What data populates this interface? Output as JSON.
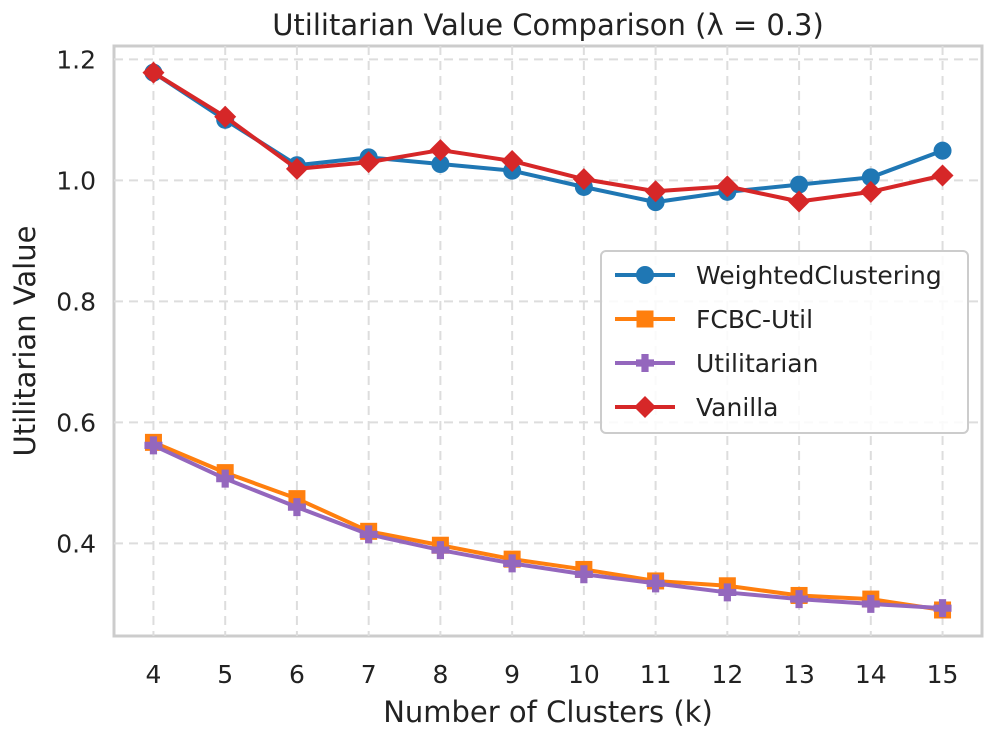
{
  "chart_data": {
    "type": "line",
    "title": "Utilitarian Value Comparison (λ = 0.3)",
    "xlabel": "Number of Clusters (k)",
    "ylabel": "Utilitarian Value",
    "x": [
      4,
      5,
      6,
      7,
      8,
      9,
      10,
      11,
      12,
      13,
      14,
      15
    ],
    "xlim": [
      3.45,
      15.55
    ],
    "ylim": [
      0.247,
      1.222
    ],
    "yticks": [
      0.4,
      0.6,
      0.8,
      1.0,
      1.2
    ],
    "ytick_labels": [
      "0.4",
      "0.6",
      "0.8",
      "1.0",
      "1.2"
    ],
    "xtick_labels": [
      "4",
      "5",
      "6",
      "7",
      "8",
      "9",
      "10",
      "11",
      "12",
      "13",
      "14",
      "15"
    ],
    "grid": true,
    "legend_position": "center-right",
    "series": [
      {
        "name": "WeightedClustering",
        "color": "#1f77b4",
        "marker": "circle",
        "values": [
          1.178,
          1.1,
          1.025,
          1.038,
          1.027,
          1.016,
          0.989,
          0.964,
          0.981,
          0.993,
          1.005,
          1.049
        ]
      },
      {
        "name": "FCBC-Util",
        "color": "#ff7f0e",
        "marker": "square",
        "values": [
          0.567,
          0.517,
          0.474,
          0.42,
          0.397,
          0.374,
          0.357,
          0.338,
          0.33,
          0.314,
          0.308,
          0.29
        ]
      },
      {
        "name": "Utilitarian",
        "color": "#9467bd",
        "marker": "plus",
        "values": [
          0.562,
          0.507,
          0.46,
          0.415,
          0.389,
          0.367,
          0.349,
          0.334,
          0.319,
          0.308,
          0.3,
          0.293
        ]
      },
      {
        "name": "Vanilla",
        "color": "#d62728",
        "marker": "diamond",
        "values": [
          1.178,
          1.105,
          1.019,
          1.03,
          1.05,
          1.032,
          1.002,
          0.982,
          0.99,
          0.965,
          0.981,
          1.008
        ]
      }
    ]
  }
}
